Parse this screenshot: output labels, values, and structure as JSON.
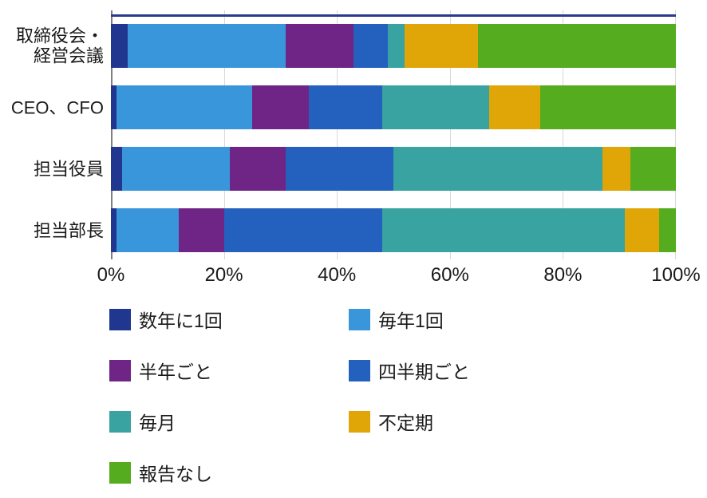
{
  "chart_data": {
    "type": "bar",
    "orientation": "horizontal",
    "stacked": true,
    "title": "",
    "xlabel": "",
    "ylabel": "",
    "xlim": [
      0,
      100
    ],
    "grid": true,
    "legend_position": "bottom",
    "categories": [
      "取締役会・\n経営会議",
      "CEO、CFO",
      "担当役員",
      "担当部長"
    ],
    "series": [
      {
        "name": "数年に1回",
        "color": "#20368F",
        "values": [
          3,
          1,
          2,
          1
        ]
      },
      {
        "name": "毎年1回",
        "color": "#3A96DB",
        "values": [
          28,
          24,
          19,
          11
        ]
      },
      {
        "name": "半年ごと",
        "color": "#6E2585",
        "values": [
          12,
          10,
          10,
          8
        ]
      },
      {
        "name": "四半期ごと",
        "color": "#2460BD",
        "values": [
          6,
          13,
          19,
          28
        ]
      },
      {
        "name": "毎月",
        "color": "#39A3A1",
        "values": [
          3,
          19,
          37,
          43
        ]
      },
      {
        "name": "不定期",
        "color": "#E0A506",
        "values": [
          13,
          9,
          5,
          6
        ]
      },
      {
        "name": "報告なし",
        "color": "#54AC1E",
        "values": [
          35,
          24,
          8,
          3
        ]
      }
    ],
    "tick_values": [
      0,
      20,
      40,
      60,
      80,
      100
    ],
    "tick_labels": [
      "0%",
      "20%",
      "40%",
      "60%",
      "80%",
      "100%"
    ]
  },
  "style": {
    "axis_line_color": "#7F7F7F",
    "grid_color": "#D9D9D9",
    "plot_top_line_color": "#2A3A8C"
  }
}
